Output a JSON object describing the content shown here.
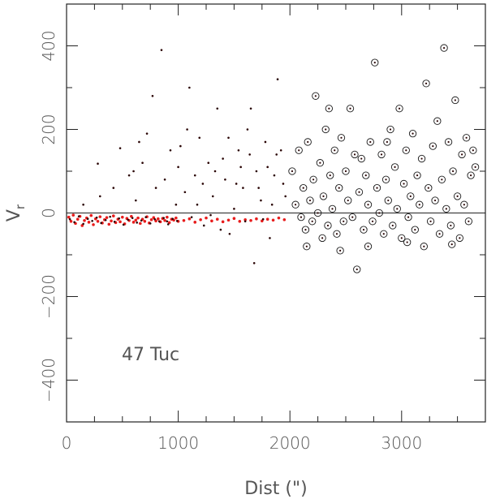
{
  "chart_data": {
    "type": "scatter",
    "title": "",
    "xlabel": "Dist (\")",
    "ylabel_main": "V",
    "ylabel_sub": "r",
    "annotation": "47 Tuc",
    "xlim": [
      0,
      3750
    ],
    "ylim": [
      -500,
      500
    ],
    "xticks": [
      0,
      1000,
      2000,
      3000
    ],
    "yticks": [
      -400,
      -200,
      0,
      200,
      400
    ],
    "x_minor_step": 250,
    "y_minor_step": 100,
    "reference_line_y": 0,
    "grid": false,
    "colors": {
      "dark_points": "#2a0505",
      "red_points": "#e81c1c",
      "circles": "#1a1a1a",
      "axes": "#222222",
      "text": "#555555"
    },
    "series": [
      {
        "marker": "dot-red",
        "points": [
          [
            20,
            -10
          ],
          [
            40,
            -20
          ],
          [
            60,
            -5
          ],
          [
            80,
            -25
          ],
          [
            100,
            -15
          ],
          [
            120,
            -8
          ],
          [
            140,
            -30
          ],
          [
            160,
            -18
          ],
          [
            180,
            -12
          ],
          [
            200,
            -22
          ],
          [
            220,
            -6
          ],
          [
            240,
            -28
          ],
          [
            260,
            -14
          ],
          [
            280,
            -20
          ],
          [
            300,
            -9
          ],
          [
            320,
            -24
          ],
          [
            340,
            -16
          ],
          [
            360,
            -11
          ],
          [
            380,
            -27
          ],
          [
            400,
            -19
          ],
          [
            420,
            -7
          ],
          [
            440,
            -23
          ],
          [
            460,
            -15
          ],
          [
            480,
            -21
          ],
          [
            500,
            -10
          ],
          [
            520,
            -26
          ],
          [
            540,
            -13
          ],
          [
            560,
            -18
          ],
          [
            580,
            -8
          ],
          [
            600,
            -22
          ],
          [
            620,
            -17
          ],
          [
            640,
            -12
          ],
          [
            660,
            -25
          ],
          [
            680,
            -15
          ],
          [
            700,
            -20
          ],
          [
            720,
            -9
          ],
          [
            740,
            -24
          ],
          [
            760,
            -16
          ],
          [
            780,
            -11
          ],
          [
            800,
            -19
          ],
          [
            820,
            -14
          ],
          [
            840,
            -21
          ],
          [
            860,
            -13
          ],
          [
            880,
            -18
          ],
          [
            900,
            -10
          ],
          [
            920,
            -23
          ],
          [
            940,
            -15
          ],
          [
            960,
            -17
          ],
          [
            980,
            -12
          ],
          [
            1000,
            -20
          ],
          [
            1050,
            -18
          ],
          [
            1100,
            -14
          ],
          [
            1150,
            -22
          ],
          [
            1200,
            -16
          ],
          [
            1250,
            -12
          ],
          [
            1300,
            -19
          ],
          [
            1350,
            -15
          ],
          [
            1400,
            -21
          ],
          [
            1450,
            -17
          ],
          [
            1500,
            -13
          ],
          [
            1550,
            -20
          ],
          [
            1600,
            -16
          ],
          [
            1650,
            -18
          ],
          [
            1700,
            -14
          ],
          [
            1750,
            -19
          ],
          [
            1800,
            -15
          ],
          [
            1850,
            -17
          ],
          [
            1900,
            -12
          ],
          [
            1950,
            -16
          ]
        ]
      },
      {
        "marker": "dot-dark",
        "points": [
          [
            30,
            -15
          ],
          [
            70,
            -22
          ],
          [
            110,
            -8
          ],
          [
            150,
            -26
          ],
          [
            190,
            -14
          ],
          [
            230,
            -19
          ],
          [
            270,
            -11
          ],
          [
            310,
            -24
          ],
          [
            350,
            -17
          ],
          [
            390,
            -9
          ],
          [
            430,
            -21
          ],
          [
            470,
            -13
          ],
          [
            510,
            -28
          ],
          [
            550,
            -16
          ],
          [
            590,
            -12
          ],
          [
            630,
            -23
          ],
          [
            670,
            -18
          ],
          [
            710,
            -10
          ],
          [
            750,
            -25
          ],
          [
            790,
            -15
          ],
          [
            830,
            -20
          ],
          [
            870,
            -12
          ],
          [
            910,
            -27
          ],
          [
            950,
            -14
          ],
          [
            990,
            -19
          ],
          [
            150,
            20
          ],
          [
            300,
            40
          ],
          [
            280,
            118
          ],
          [
            420,
            60
          ],
          [
            480,
            155
          ],
          [
            560,
            90
          ],
          [
            620,
            30
          ],
          [
            680,
            120
          ],
          [
            720,
            190
          ],
          [
            770,
            280
          ],
          [
            850,
            390
          ],
          [
            880,
            80
          ],
          [
            930,
            150
          ],
          [
            980,
            20
          ],
          [
            1020,
            160
          ],
          [
            1080,
            200
          ],
          [
            1100,
            300
          ],
          [
            1150,
            90
          ],
          [
            1190,
            180
          ],
          [
            1230,
            -30
          ],
          [
            1270,
            120
          ],
          [
            1310,
            40
          ],
          [
            1350,
            250
          ],
          [
            1380,
            -40
          ],
          [
            1420,
            80
          ],
          [
            1450,
            180
          ],
          [
            1500,
            10
          ],
          [
            1540,
            150
          ],
          [
            1580,
            60
          ],
          [
            1620,
            200
          ],
          [
            1650,
            250
          ],
          [
            1680,
            -120
          ],
          [
            1700,
            100
          ],
          [
            1740,
            30
          ],
          [
            1780,
            170
          ],
          [
            1820,
            -60
          ],
          [
            1860,
            90
          ],
          [
            1890,
            320
          ],
          [
            1920,
            150
          ],
          [
            1960,
            40
          ],
          [
            600,
            100
          ],
          [
            650,
            170
          ],
          [
            800,
            60
          ],
          [
            900,
            -20
          ],
          [
            1000,
            110
          ],
          [
            1060,
            50
          ],
          [
            1120,
            -10
          ],
          [
            1170,
            20
          ],
          [
            1220,
            70
          ],
          [
            1290,
            -5
          ],
          [
            1330,
            100
          ],
          [
            1400,
            130
          ],
          [
            1460,
            -50
          ],
          [
            1520,
            70
          ],
          [
            1560,
            110
          ],
          [
            1600,
            -20
          ],
          [
            1640,
            140
          ],
          [
            1720,
            60
          ],
          [
            1760,
            -15
          ],
          [
            1800,
            110
          ],
          [
            1840,
            20
          ],
          [
            1880,
            140
          ],
          [
            1940,
            70
          ]
        ]
      },
      {
        "marker": "circled-dot",
        "points": [
          [
            2020,
            100
          ],
          [
            2050,
            20
          ],
          [
            2080,
            150
          ],
          [
            2100,
            -10
          ],
          [
            2120,
            60
          ],
          [
            2140,
            -40
          ],
          [
            2160,
            170
          ],
          [
            2180,
            30
          ],
          [
            2200,
            -20
          ],
          [
            2210,
            80
          ],
          [
            2230,
            280
          ],
          [
            2250,
            0
          ],
          [
            2270,
            120
          ],
          [
            2290,
            -60
          ],
          [
            2300,
            40
          ],
          [
            2320,
            200
          ],
          [
            2340,
            -30
          ],
          [
            2360,
            90
          ],
          [
            2380,
            10
          ],
          [
            2400,
            150
          ],
          [
            2420,
            -50
          ],
          [
            2440,
            60
          ],
          [
            2460,
            180
          ],
          [
            2480,
            -20
          ],
          [
            2500,
            100
          ],
          [
            2520,
            30
          ],
          [
            2540,
            250
          ],
          [
            2560,
            -10
          ],
          [
            2580,
            140
          ],
          [
            2600,
            -135
          ],
          [
            2620,
            50
          ],
          [
            2640,
            130
          ],
          [
            2660,
            -40
          ],
          [
            2680,
            90
          ],
          [
            2700,
            20
          ],
          [
            2720,
            170
          ],
          [
            2740,
            -20
          ],
          [
            2760,
            360
          ],
          [
            2780,
            60
          ],
          [
            2800,
            0
          ],
          [
            2820,
            140
          ],
          [
            2840,
            -50
          ],
          [
            2860,
            80
          ],
          [
            2880,
            30
          ],
          [
            2900,
            200
          ],
          [
            2920,
            -30
          ],
          [
            2940,
            110
          ],
          [
            2960,
            10
          ],
          [
            2980,
            250
          ],
          [
            3000,
            -60
          ],
          [
            3020,
            70
          ],
          [
            3040,
            150
          ],
          [
            3060,
            -10
          ],
          [
            3080,
            40
          ],
          [
            3100,
            190
          ],
          [
            3120,
            -40
          ],
          [
            3140,
            90
          ],
          [
            3160,
            20
          ],
          [
            3180,
            130
          ],
          [
            3200,
            -80
          ],
          [
            3220,
            310
          ],
          [
            3240,
            60
          ],
          [
            3260,
            -20
          ],
          [
            3280,
            160
          ],
          [
            3300,
            30
          ],
          [
            3320,
            220
          ],
          [
            3340,
            -50
          ],
          [
            3360,
            80
          ],
          [
            3380,
            395
          ],
          [
            3400,
            10
          ],
          [
            3420,
            170
          ],
          [
            3440,
            -30
          ],
          [
            3460,
            100
          ],
          [
            3480,
            270
          ],
          [
            3500,
            40
          ],
          [
            3520,
            -60
          ],
          [
            3540,
            140
          ],
          [
            3560,
            20
          ],
          [
            3580,
            180
          ],
          [
            3600,
            -20
          ],
          [
            3620,
            90
          ],
          [
            3640,
            150
          ],
          [
            3660,
            110
          ],
          [
            2150,
            -80
          ],
          [
            2450,
            -90
          ],
          [
            2700,
            -80
          ],
          [
            3050,
            -70
          ],
          [
            3450,
            -75
          ],
          [
            2350,
            250
          ],
          [
            2870,
            170
          ]
        ]
      }
    ]
  }
}
